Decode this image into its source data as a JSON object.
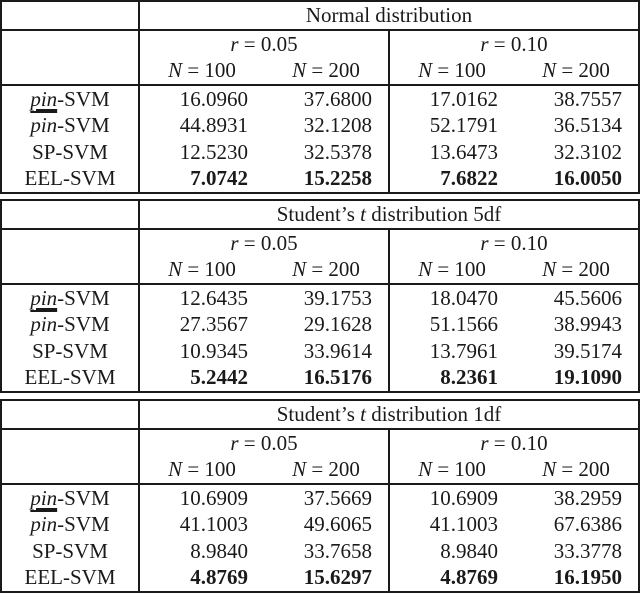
{
  "row_labels": [
    {
      "prefix": "pin",
      "suffix": "-SVM",
      "style": "underline"
    },
    {
      "prefix": "pin",
      "suffix": "-SVM",
      "style": "overline"
    },
    {
      "prefix": "",
      "suffix": "SP-SVM",
      "style": "plain"
    },
    {
      "prefix": "",
      "suffix": "EEL-SVM",
      "style": "plain"
    }
  ],
  "header": {
    "r1": {
      "var": "r",
      "eq": " = 0.05"
    },
    "r2": {
      "var": "r",
      "eq": " = 0.10"
    },
    "n1": {
      "var": "N",
      "eq": " = 100"
    },
    "n2": {
      "var": "N",
      "eq": " = 200"
    }
  },
  "blocks": [
    {
      "title_pre": "Normal distribution",
      "title_var": "",
      "title_post": "",
      "rows": [
        [
          "16.0960",
          "37.6800",
          "17.0162",
          "38.7557"
        ],
        [
          "44.8931",
          "32.1208",
          "52.1791",
          "36.5134"
        ],
        [
          "12.5230",
          "32.5378",
          "13.6473",
          "32.3102"
        ],
        [
          "7.0742",
          "15.2258",
          "7.6822",
          "16.0050"
        ]
      ]
    },
    {
      "title_pre": "Student’s ",
      "title_var": "t",
      "title_post": " distribution 5df",
      "rows": [
        [
          "12.6435",
          "39.1753",
          "18.0470",
          "45.5606"
        ],
        [
          "27.3567",
          "29.1628",
          "51.1566",
          "38.9943"
        ],
        [
          "10.9345",
          "33.9614",
          "13.7961",
          "39.5174"
        ],
        [
          "5.2442",
          "16.5176",
          "8.2361",
          "19.1090"
        ]
      ]
    },
    {
      "title_pre": "Student’s ",
      "title_var": "t",
      "title_post": " distribution 1df",
      "rows": [
        [
          "10.6909",
          "37.5669",
          "10.6909",
          "38.2959"
        ],
        [
          "41.1003",
          "49.6065",
          "41.1003",
          "67.6386"
        ],
        [
          "8.9840",
          "33.7658",
          "8.9840",
          "33.3778"
        ],
        [
          "4.8769",
          "15.6297",
          "4.8769",
          "16.1950"
        ]
      ]
    }
  ]
}
